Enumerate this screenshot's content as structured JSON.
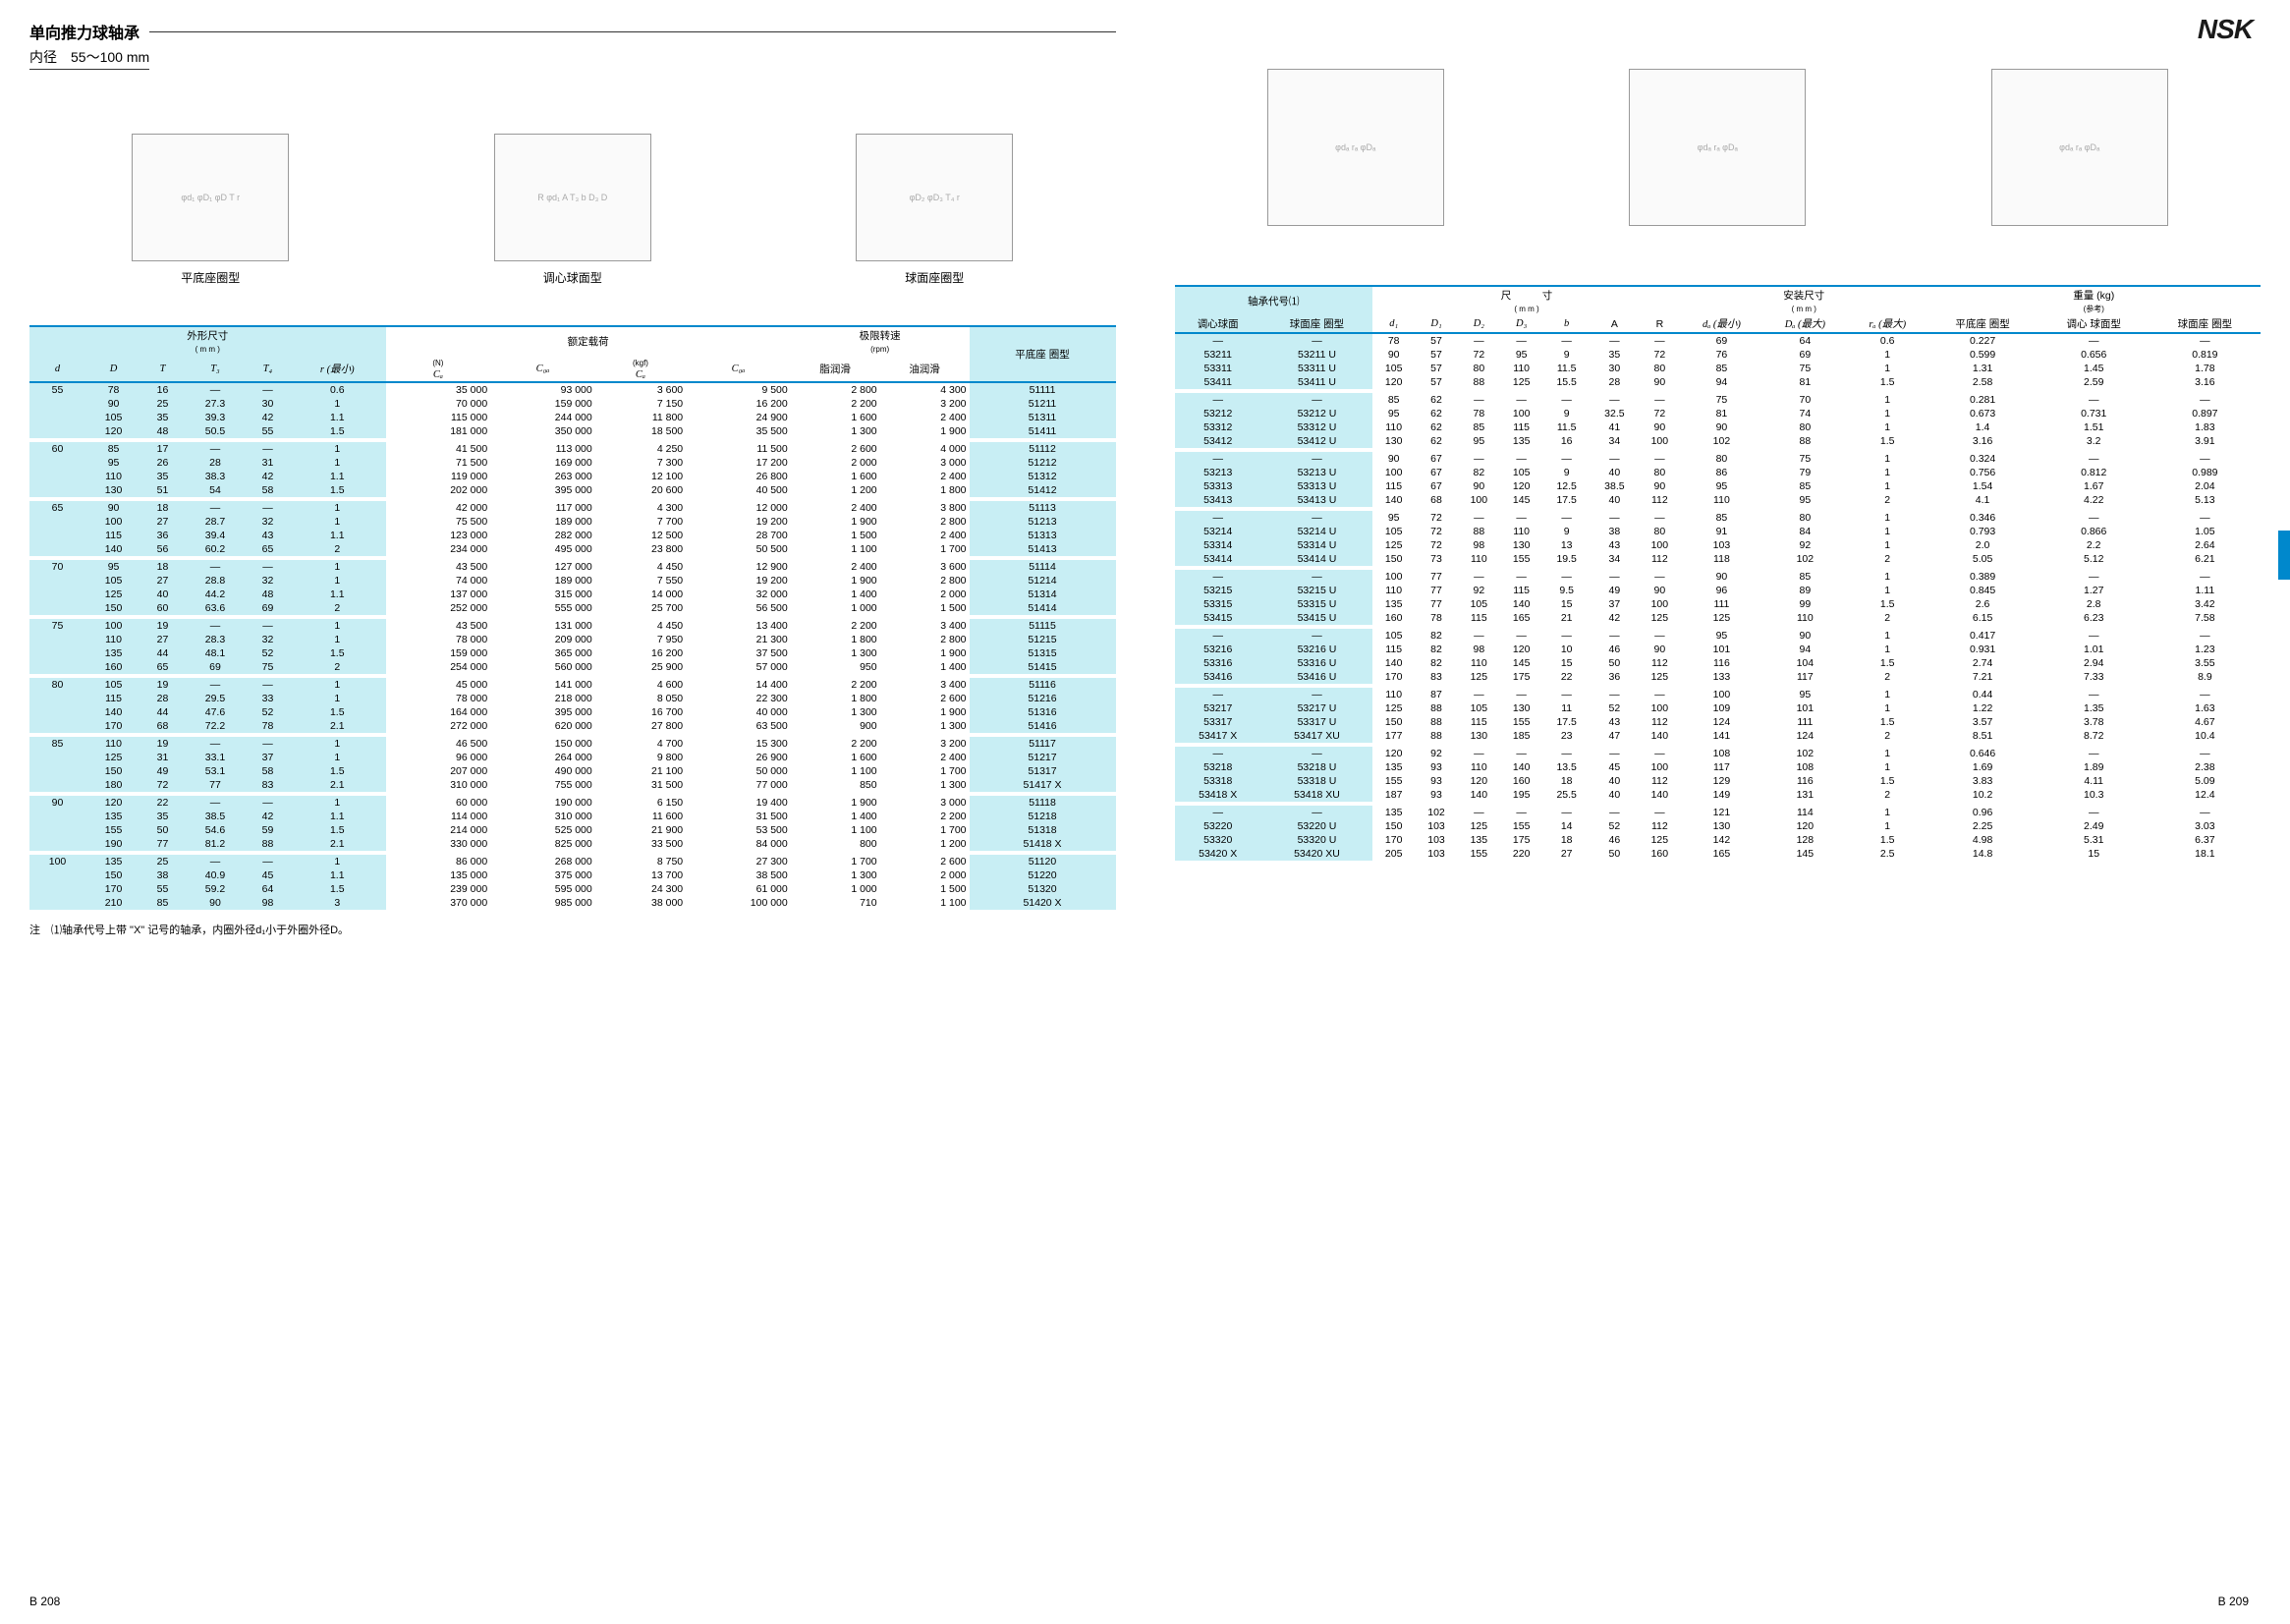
{
  "left_page": {
    "title": "单向推力球轴承",
    "subtitle": "内径　55～100 mm",
    "diagram_labels": [
      "平底座圈型",
      "调心球面型",
      "球面座圈型"
    ],
    "table_header": {
      "dims": "外形尺寸",
      "dims_unit": "( m m )",
      "loads": "额定载荷",
      "loads_unit_n": "(N)",
      "loads_unit_kgf": "(kgf)",
      "speed": "极限转速",
      "speed_unit": "(rpm)",
      "type_col": "平底座 圈型",
      "cols": [
        "d",
        "D",
        "T",
        "T₃",
        "T₄",
        "r (最小)",
        "Cₐ",
        "C₀ₐ",
        "Cₐ",
        "C₀ₐ",
        "脂润滑",
        "油润滑",
        ""
      ]
    },
    "rows": [
      [
        "55",
        "78",
        "16",
        "—",
        "—",
        "0.6",
        "35 000",
        "93 000",
        "3 600",
        "9 500",
        "2 800",
        "4 300",
        "51111"
      ],
      [
        "",
        "90",
        "25",
        "27.3",
        "30",
        "1",
        "70 000",
        "159 000",
        "7 150",
        "16 200",
        "2 200",
        "3 200",
        "51211"
      ],
      [
        "",
        "105",
        "35",
        "39.3",
        "42",
        "1.1",
        "115 000",
        "244 000",
        "11 800",
        "24 900",
        "1 600",
        "2 400",
        "51311"
      ],
      [
        "",
        "120",
        "48",
        "50.5",
        "55",
        "1.5",
        "181 000",
        "350 000",
        "18 500",
        "35 500",
        "1 300",
        "1 900",
        "51411"
      ],
      [
        "60",
        "85",
        "17",
        "—",
        "—",
        "1",
        "41 500",
        "113 000",
        "4 250",
        "11 500",
        "2 600",
        "4 000",
        "51112"
      ],
      [
        "",
        "95",
        "26",
        "28",
        "31",
        "1",
        "71 500",
        "169 000",
        "7 300",
        "17 200",
        "2 000",
        "3 000",
        "51212"
      ],
      [
        "",
        "110",
        "35",
        "38.3",
        "42",
        "1.1",
        "119 000",
        "263 000",
        "12 100",
        "26 800",
        "1 600",
        "2 400",
        "51312"
      ],
      [
        "",
        "130",
        "51",
        "54",
        "58",
        "1.5",
        "202 000",
        "395 000",
        "20 600",
        "40 500",
        "1 200",
        "1 800",
        "51412"
      ],
      [
        "65",
        "90",
        "18",
        "—",
        "—",
        "1",
        "42 000",
        "117 000",
        "4 300",
        "12 000",
        "2 400",
        "3 800",
        "51113"
      ],
      [
        "",
        "100",
        "27",
        "28.7",
        "32",
        "1",
        "75 500",
        "189 000",
        "7 700",
        "19 200",
        "1 900",
        "2 800",
        "51213"
      ],
      [
        "",
        "115",
        "36",
        "39.4",
        "43",
        "1.1",
        "123 000",
        "282 000",
        "12 500",
        "28 700",
        "1 500",
        "2 400",
        "51313"
      ],
      [
        "",
        "140",
        "56",
        "60.2",
        "65",
        "2",
        "234 000",
        "495 000",
        "23 800",
        "50 500",
        "1 100",
        "1 700",
        "51413"
      ],
      [
        "70",
        "95",
        "18",
        "—",
        "—",
        "1",
        "43 500",
        "127 000",
        "4 450",
        "12 900",
        "2 400",
        "3 600",
        "51114"
      ],
      [
        "",
        "105",
        "27",
        "28.8",
        "32",
        "1",
        "74 000",
        "189 000",
        "7 550",
        "19 200",
        "1 900",
        "2 800",
        "51214"
      ],
      [
        "",
        "125",
        "40",
        "44.2",
        "48",
        "1.1",
        "137 000",
        "315 000",
        "14 000",
        "32 000",
        "1 400",
        "2 000",
        "51314"
      ],
      [
        "",
        "150",
        "60",
        "63.6",
        "69",
        "2",
        "252 000",
        "555 000",
        "25 700",
        "56 500",
        "1 000",
        "1 500",
        "51414"
      ],
      [
        "75",
        "100",
        "19",
        "—",
        "—",
        "1",
        "43 500",
        "131 000",
        "4 450",
        "13 400",
        "2 200",
        "3 400",
        "51115"
      ],
      [
        "",
        "110",
        "27",
        "28.3",
        "32",
        "1",
        "78 000",
        "209 000",
        "7 950",
        "21 300",
        "1 800",
        "2 800",
        "51215"
      ],
      [
        "",
        "135",
        "44",
        "48.1",
        "52",
        "1.5",
        "159 000",
        "365 000",
        "16 200",
        "37 500",
        "1 300",
        "1 900",
        "51315"
      ],
      [
        "",
        "160",
        "65",
        "69",
        "75",
        "2",
        "254 000",
        "560 000",
        "25 900",
        "57 000",
        "950",
        "1 400",
        "51415"
      ],
      [
        "80",
        "105",
        "19",
        "—",
        "—",
        "1",
        "45 000",
        "141 000",
        "4 600",
        "14 400",
        "2 200",
        "3 400",
        "51116"
      ],
      [
        "",
        "115",
        "28",
        "29.5",
        "33",
        "1",
        "78 000",
        "218 000",
        "8 050",
        "22 300",
        "1 800",
        "2 600",
        "51216"
      ],
      [
        "",
        "140",
        "44",
        "47.6",
        "52",
        "1.5",
        "164 000",
        "395 000",
        "16 700",
        "40 000",
        "1 300",
        "1 900",
        "51316"
      ],
      [
        "",
        "170",
        "68",
        "72.2",
        "78",
        "2.1",
        "272 000",
        "620 000",
        "27 800",
        "63 500",
        "900",
        "1 300",
        "51416"
      ],
      [
        "85",
        "110",
        "19",
        "—",
        "—",
        "1",
        "46 500",
        "150 000",
        "4 700",
        "15 300",
        "2 200",
        "3 200",
        "51117"
      ],
      [
        "",
        "125",
        "31",
        "33.1",
        "37",
        "1",
        "96 000",
        "264 000",
        "9 800",
        "26 900",
        "1 600",
        "2 400",
        "51217"
      ],
      [
        "",
        "150",
        "49",
        "53.1",
        "58",
        "1.5",
        "207 000",
        "490 000",
        "21 100",
        "50 000",
        "1 100",
        "1 700",
        "51317"
      ],
      [
        "",
        "180",
        "72",
        "77",
        "83",
        "2.1",
        "310 000",
        "755 000",
        "31 500",
        "77 000",
        "850",
        "1 300",
        "51417 X"
      ],
      [
        "90",
        "120",
        "22",
        "—",
        "—",
        "1",
        "60 000",
        "190 000",
        "6 150",
        "19 400",
        "1 900",
        "3 000",
        "51118"
      ],
      [
        "",
        "135",
        "35",
        "38.5",
        "42",
        "1.1",
        "114 000",
        "310 000",
        "11 600",
        "31 500",
        "1 400",
        "2 200",
        "51218"
      ],
      [
        "",
        "155",
        "50",
        "54.6",
        "59",
        "1.5",
        "214 000",
        "525 000",
        "21 900",
        "53 500",
        "1 100",
        "1 700",
        "51318"
      ],
      [
        "",
        "190",
        "77",
        "81.2",
        "88",
        "2.1",
        "330 000",
        "825 000",
        "33 500",
        "84 000",
        "800",
        "1 200",
        "51418 X"
      ],
      [
        "100",
        "135",
        "25",
        "—",
        "—",
        "1",
        "86 000",
        "268 000",
        "8 750",
        "27 300",
        "1 700",
        "2 600",
        "51120"
      ],
      [
        "",
        "150",
        "38",
        "40.9",
        "45",
        "1.1",
        "135 000",
        "375 000",
        "13 700",
        "38 500",
        "1 300",
        "2 000",
        "51220"
      ],
      [
        "",
        "170",
        "55",
        "59.2",
        "64",
        "1.5",
        "239 000",
        "595 000",
        "24 300",
        "61 000",
        "1 000",
        "1 500",
        "51320"
      ],
      [
        "",
        "210",
        "85",
        "90",
        "98",
        "3",
        "370 000",
        "985 000",
        "38 000",
        "100 000",
        "710",
        "1 100",
        "51420 X"
      ]
    ],
    "footnote": "注　⑴轴承代号上带 \"X\" 记号的轴承，内圈外径d₁小于外圈外径D。",
    "page_number": "B 208"
  },
  "right_page": {
    "logo": "NSK",
    "table_header": {
      "bearing_no": "轴承代号⑴",
      "dims": "尺　　　寸",
      "dims_unit": "( m m )",
      "install": "安装尺寸",
      "install_unit": "( m m )",
      "mass": "重量 (kg)",
      "mass_unit": "(参考)",
      "sub1": [
        "调心球面",
        "球面座 圈型",
        "d₁",
        "D₁",
        "D₂",
        "D₃",
        "b",
        "A",
        "R",
        "dₐ (最小)",
        "Dₐ (最大)",
        "rₐ (最大)",
        "平底座 圈型",
        "调心 球面型",
        "球面座 圈型"
      ]
    },
    "rows": [
      [
        "—",
        "—",
        "78",
        "57",
        "—",
        "—",
        "—",
        "—",
        "—",
        "69",
        "64",
        "0.6",
        "0.227",
        "—",
        "—"
      ],
      [
        "53211",
        "53211 U",
        "90",
        "57",
        "72",
        "95",
        "9",
        "35",
        "72",
        "76",
        "69",
        "1",
        "0.599",
        "0.656",
        "0.819"
      ],
      [
        "53311",
        "53311 U",
        "105",
        "57",
        "80",
        "110",
        "11.5",
        "30",
        "80",
        "85",
        "75",
        "1",
        "1.31",
        "1.45",
        "1.78"
      ],
      [
        "53411",
        "53411 U",
        "120",
        "57",
        "88",
        "125",
        "15.5",
        "28",
        "90",
        "94",
        "81",
        "1.5",
        "2.58",
        "2.59",
        "3.16"
      ],
      [
        "—",
        "—",
        "85",
        "62",
        "—",
        "—",
        "—",
        "—",
        "—",
        "75",
        "70",
        "1",
        "0.281",
        "—",
        "—"
      ],
      [
        "53212",
        "53212 U",
        "95",
        "62",
        "78",
        "100",
        "9",
        "32.5",
        "72",
        "81",
        "74",
        "1",
        "0.673",
        "0.731",
        "0.897"
      ],
      [
        "53312",
        "53312 U",
        "110",
        "62",
        "85",
        "115",
        "11.5",
        "41",
        "90",
        "90",
        "80",
        "1",
        "1.4",
        "1.51",
        "1.83"
      ],
      [
        "53412",
        "53412 U",
        "130",
        "62",
        "95",
        "135",
        "16",
        "34",
        "100",
        "102",
        "88",
        "1.5",
        "3.16",
        "3.2",
        "3.91"
      ],
      [
        "—",
        "—",
        "90",
        "67",
        "—",
        "—",
        "—",
        "—",
        "—",
        "80",
        "75",
        "1",
        "0.324",
        "—",
        "—"
      ],
      [
        "53213",
        "53213 U",
        "100",
        "67",
        "82",
        "105",
        "9",
        "40",
        "80",
        "86",
        "79",
        "1",
        "0.756",
        "0.812",
        "0.989"
      ],
      [
        "53313",
        "53313 U",
        "115",
        "67",
        "90",
        "120",
        "12.5",
        "38.5",
        "90",
        "95",
        "85",
        "1",
        "1.54",
        "1.67",
        "2.04"
      ],
      [
        "53413",
        "53413 U",
        "140",
        "68",
        "100",
        "145",
        "17.5",
        "40",
        "112",
        "110",
        "95",
        "2",
        "4.1",
        "4.22",
        "5.13"
      ],
      [
        "—",
        "—",
        "95",
        "72",
        "—",
        "—",
        "—",
        "—",
        "—",
        "85",
        "80",
        "1",
        "0.346",
        "—",
        "—"
      ],
      [
        "53214",
        "53214 U",
        "105",
        "72",
        "88",
        "110",
        "9",
        "38",
        "80",
        "91",
        "84",
        "1",
        "0.793",
        "0.866",
        "1.05"
      ],
      [
        "53314",
        "53314 U",
        "125",
        "72",
        "98",
        "130",
        "13",
        "43",
        "100",
        "103",
        "92",
        "1",
        "2.0",
        "2.2",
        "2.64"
      ],
      [
        "53414",
        "53414 U",
        "150",
        "73",
        "110",
        "155",
        "19.5",
        "34",
        "112",
        "118",
        "102",
        "2",
        "5.05",
        "5.12",
        "6.21"
      ],
      [
        "—",
        "—",
        "100",
        "77",
        "—",
        "—",
        "—",
        "—",
        "—",
        "90",
        "85",
        "1",
        "0.389",
        "—",
        "—"
      ],
      [
        "53215",
        "53215 U",
        "110",
        "77",
        "92",
        "115",
        "9.5",
        "49",
        "90",
        "96",
        "89",
        "1",
        "0.845",
        "1.27",
        "1.11"
      ],
      [
        "53315",
        "53315 U",
        "135",
        "77",
        "105",
        "140",
        "15",
        "37",
        "100",
        "111",
        "99",
        "1.5",
        "2.6",
        "2.8",
        "3.42"
      ],
      [
        "53415",
        "53415 U",
        "160",
        "78",
        "115",
        "165",
        "21",
        "42",
        "125",
        "125",
        "110",
        "2",
        "6.15",
        "6.23",
        "7.58"
      ],
      [
        "—",
        "—",
        "105",
        "82",
        "—",
        "—",
        "—",
        "—",
        "—",
        "95",
        "90",
        "1",
        "0.417",
        "—",
        "—"
      ],
      [
        "53216",
        "53216 U",
        "115",
        "82",
        "98",
        "120",
        "10",
        "46",
        "90",
        "101",
        "94",
        "1",
        "0.931",
        "1.01",
        "1.23"
      ],
      [
        "53316",
        "53316 U",
        "140",
        "82",
        "110",
        "145",
        "15",
        "50",
        "112",
        "116",
        "104",
        "1.5",
        "2.74",
        "2.94",
        "3.55"
      ],
      [
        "53416",
        "53416 U",
        "170",
        "83",
        "125",
        "175",
        "22",
        "36",
        "125",
        "133",
        "117",
        "2",
        "7.21",
        "7.33",
        "8.9"
      ],
      [
        "—",
        "—",
        "110",
        "87",
        "—",
        "—",
        "—",
        "—",
        "—",
        "100",
        "95",
        "1",
        "0.44",
        "—",
        "—"
      ],
      [
        "53217",
        "53217 U",
        "125",
        "88",
        "105",
        "130",
        "11",
        "52",
        "100",
        "109",
        "101",
        "1",
        "1.22",
        "1.35",
        "1.63"
      ],
      [
        "53317",
        "53317 U",
        "150",
        "88",
        "115",
        "155",
        "17.5",
        "43",
        "112",
        "124",
        "111",
        "1.5",
        "3.57",
        "3.78",
        "4.67"
      ],
      [
        "53417 X",
        "53417 XU",
        "177",
        "88",
        "130",
        "185",
        "23",
        "47",
        "140",
        "141",
        "124",
        "2",
        "8.51",
        "8.72",
        "10.4"
      ],
      [
        "—",
        "—",
        "120",
        "92",
        "—",
        "—",
        "—",
        "—",
        "—",
        "108",
        "102",
        "1",
        "0.646",
        "—",
        "—"
      ],
      [
        "53218",
        "53218 U",
        "135",
        "93",
        "110",
        "140",
        "13.5",
        "45",
        "100",
        "117",
        "108",
        "1",
        "1.69",
        "1.89",
        "2.38"
      ],
      [
        "53318",
        "53318 U",
        "155",
        "93",
        "120",
        "160",
        "18",
        "40",
        "112",
        "129",
        "116",
        "1.5",
        "3.83",
        "4.11",
        "5.09"
      ],
      [
        "53418 X",
        "53418 XU",
        "187",
        "93",
        "140",
        "195",
        "25.5",
        "40",
        "140",
        "149",
        "131",
        "2",
        "10.2",
        "10.3",
        "12.4"
      ],
      [
        "—",
        "—",
        "135",
        "102",
        "—",
        "—",
        "—",
        "—",
        "—",
        "121",
        "114",
        "1",
        "0.96",
        "—",
        "—"
      ],
      [
        "53220",
        "53220 U",
        "150",
        "103",
        "125",
        "155",
        "14",
        "52",
        "112",
        "130",
        "120",
        "1",
        "2.25",
        "2.49",
        "3.03"
      ],
      [
        "53320",
        "53320 U",
        "170",
        "103",
        "135",
        "175",
        "18",
        "46",
        "125",
        "142",
        "128",
        "1.5",
        "4.98",
        "5.31",
        "6.37"
      ],
      [
        "53420 X",
        "53420 XU",
        "205",
        "103",
        "155",
        "220",
        "27",
        "50",
        "160",
        "165",
        "145",
        "2.5",
        "14.8",
        "15",
        "18.1"
      ]
    ],
    "page_number": "B 209"
  },
  "colors": {
    "highlight": "#c8eef4",
    "head_border": "#0088cc",
    "text": "#000000"
  }
}
